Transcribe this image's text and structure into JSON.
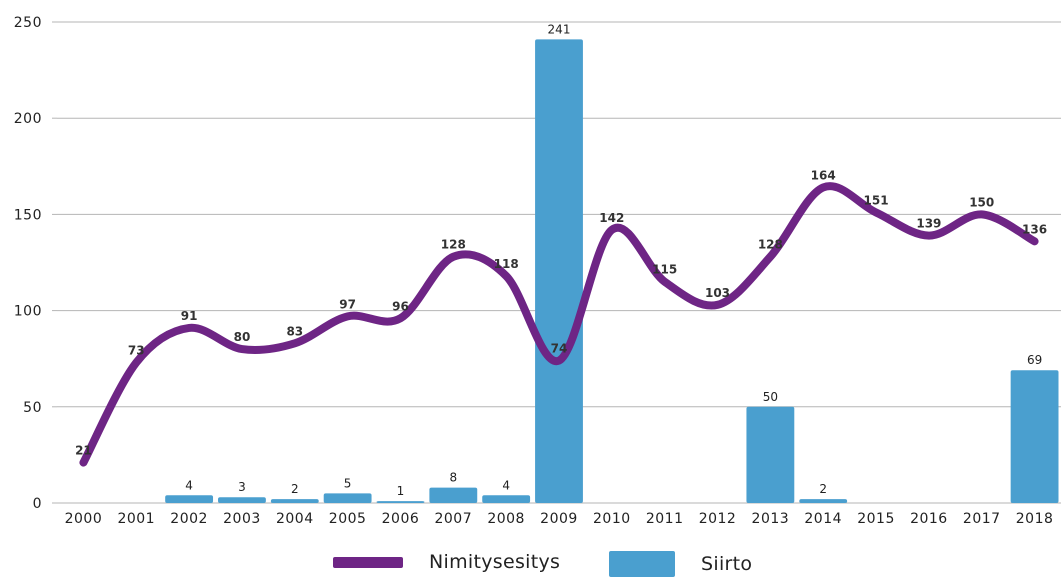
{
  "chart_data": {
    "type": "bar+line",
    "categories": [
      "2000",
      "2001",
      "2002",
      "2003",
      "2004",
      "2005",
      "2006",
      "2007",
      "2008",
      "2009",
      "2010",
      "2011",
      "2012",
      "2013",
      "2014",
      "2015",
      "2016",
      "2017",
      "2018"
    ],
    "series": [
      {
        "name": "Siirto",
        "type": "bar",
        "color": "#4a9fcf",
        "values": [
          null,
          null,
          4,
          3,
          2,
          5,
          1,
          8,
          4,
          241,
          null,
          null,
          null,
          50,
          2,
          null,
          null,
          null,
          69
        ]
      },
      {
        "name": "Nimitysesitys",
        "type": "line",
        "color": "#6e2585",
        "values": [
          21,
          73,
          91,
          80,
          83,
          97,
          96,
          128,
          118,
          74,
          142,
          115,
          103,
          128,
          164,
          151,
          139,
          150,
          136
        ]
      }
    ],
    "y_ticks": [
      "0",
      "50",
      "100",
      "150",
      "200",
      "250"
    ],
    "ylim": [
      0,
      250
    ],
    "grid": true,
    "legend_position": "bottom"
  }
}
